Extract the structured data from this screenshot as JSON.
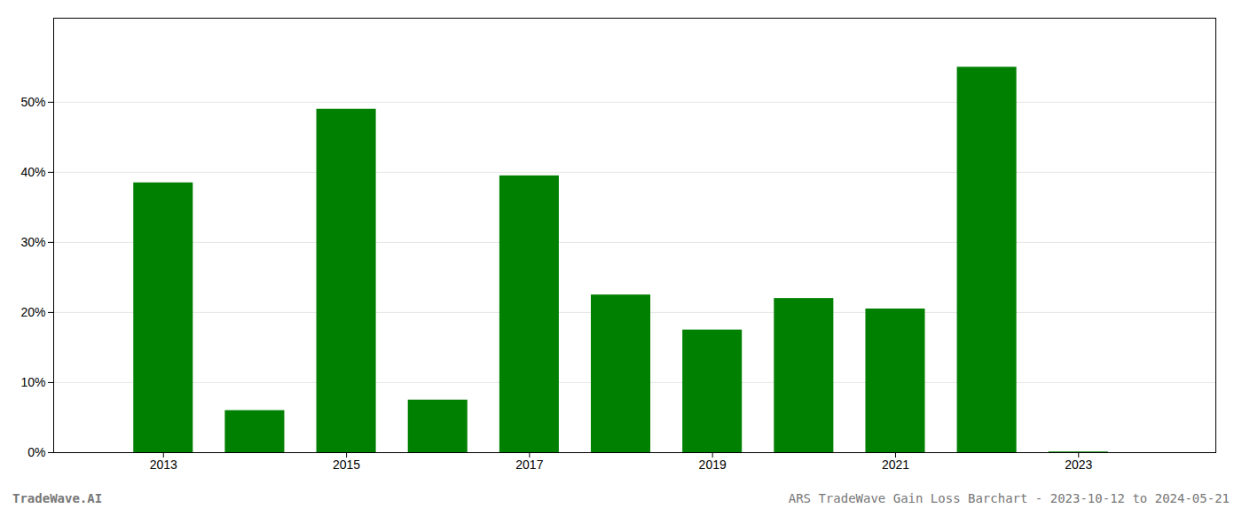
{
  "chart_data": {
    "type": "bar",
    "x": [
      2013,
      2014,
      2015,
      2016,
      2017,
      2018,
      2019,
      2020,
      2021,
      2022,
      2023
    ],
    "values": [
      0.385,
      0.06,
      0.49,
      0.075,
      0.395,
      0.225,
      0.175,
      0.22,
      0.205,
      0.55,
      0.001
    ],
    "color": "#008000",
    "xlim": [
      2011.8,
      2024.5
    ],
    "xticks": [
      2013,
      2015,
      2017,
      2019,
      2021,
      2023
    ],
    "ylim": [
      0,
      0.62
    ],
    "yticks": [
      {
        "value": 0,
        "label": "0%"
      },
      {
        "value": 0.1,
        "label": "10%"
      },
      {
        "value": 0.2,
        "label": "20%"
      },
      {
        "value": 0.3,
        "label": "30%"
      },
      {
        "value": 0.4,
        "label": "40%"
      },
      {
        "value": 0.5,
        "label": "50%"
      }
    ],
    "grid": true,
    "annotations": [
      "TradeWave.AI",
      "ARS TradeWave Gain Loss Barchart - 2023-10-12 to 2024-05-21"
    ]
  }
}
